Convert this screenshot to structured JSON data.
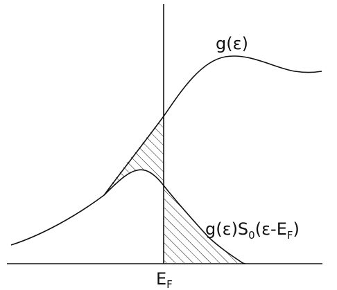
{
  "labels": {
    "g_curve": "g(ε)",
    "product_curve_prefix": "g(ε)S",
    "product_curve_subscript": "0",
    "product_curve_suffix": "(ε-E",
    "product_curve_suffix_subscript": "F",
    "product_curve_close": ")",
    "fermi_level": "E",
    "fermi_level_subscript": "F"
  },
  "colors": {
    "line": "#111111",
    "background": "#ffffff"
  }
}
